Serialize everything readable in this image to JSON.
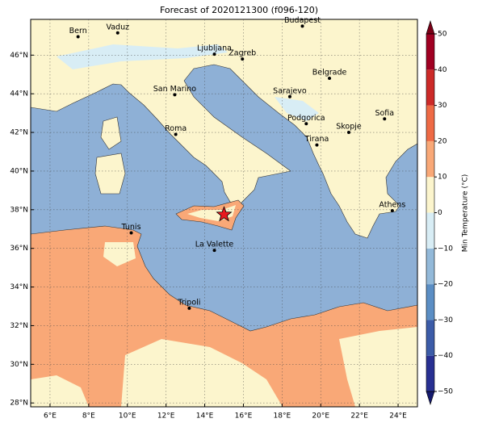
{
  "title": "Forecast of 2020121300 (f096-120)",
  "map": {
    "xlim": [
      5,
      25
    ],
    "ylim": [
      27.8,
      47.85
    ],
    "grid": true,
    "xticks": [
      {
        "value": 6,
        "label": "6°E"
      },
      {
        "value": 8,
        "label": "8°E"
      },
      {
        "value": 10,
        "label": "10°E"
      },
      {
        "value": 12,
        "label": "12°E"
      },
      {
        "value": 14,
        "label": "14°E"
      },
      {
        "value": 16,
        "label": "16°E"
      },
      {
        "value": 18,
        "label": "18°E"
      },
      {
        "value": 20,
        "label": "20°E"
      },
      {
        "value": 22,
        "label": "22°E"
      },
      {
        "value": 24,
        "label": "24°E"
      }
    ],
    "yticks": [
      {
        "value": 28,
        "label": "28°N"
      },
      {
        "value": 30,
        "label": "30°N"
      },
      {
        "value": 32,
        "label": "32°N"
      },
      {
        "value": 34,
        "label": "34°N"
      },
      {
        "value": 36,
        "label": "36°N"
      },
      {
        "value": 38,
        "label": "38°N"
      },
      {
        "value": 40,
        "label": "40°N"
      },
      {
        "value": 42,
        "label": "42°N"
      },
      {
        "value": 44,
        "label": "44°N"
      },
      {
        "value": 46,
        "label": "46°N"
      }
    ]
  },
  "cities": [
    {
      "name": "Bern",
      "lon": 7.45,
      "lat": 46.95
    },
    {
      "name": "Vaduz",
      "lon": 9.5,
      "lat": 47.15
    },
    {
      "name": "Budapest",
      "lon": 19.05,
      "lat": 47.5
    },
    {
      "name": "Ljubljana",
      "lon": 14.5,
      "lat": 46.05
    },
    {
      "name": "Zagreb",
      "lon": 15.95,
      "lat": 45.8
    },
    {
      "name": "Belgrade",
      "lon": 20.45,
      "lat": 44.8
    },
    {
      "name": "San Marino",
      "lon": 12.45,
      "lat": 43.95
    },
    {
      "name": "Sarajevo",
      "lon": 18.4,
      "lat": 43.85
    },
    {
      "name": "Sofia",
      "lon": 23.3,
      "lat": 42.7
    },
    {
      "name": "Podgorica",
      "lon": 19.25,
      "lat": 42.45
    },
    {
      "name": "Skopje",
      "lon": 21.45,
      "lat": 42.0
    },
    {
      "name": "Roma",
      "lon": 12.5,
      "lat": 41.9
    },
    {
      "name": "Tirana",
      "lon": 19.8,
      "lat": 41.35
    },
    {
      "name": "Athens",
      "lon": 23.7,
      "lat": 37.95
    },
    {
      "name": "Tunis",
      "lon": 10.2,
      "lat": 36.8
    },
    {
      "name": "La Valette",
      "lon": 14.5,
      "lat": 35.9
    },
    {
      "name": "Tripoli",
      "lon": 13.2,
      "lat": 32.9
    }
  ],
  "marker": {
    "lon": 15.0,
    "lat": 37.75,
    "color": "#e8191f"
  },
  "colorbar": {
    "label": "Min Temperature (°C)",
    "lim": [
      -50,
      50
    ],
    "ticks": [
      {
        "value": -50,
        "label": "−50"
      },
      {
        "value": -40,
        "label": "−40"
      },
      {
        "value": -30,
        "label": "−30"
      },
      {
        "value": -20,
        "label": "−20"
      },
      {
        "value": -10,
        "label": "−10"
      },
      0,
      10,
      20,
      30,
      40,
      50
    ],
    "colors": [
      "#283092",
      "#3c5ca8",
      "#5b8ec4",
      "#93b9d9",
      "#d8edf5",
      "#fcf5cd",
      "#f9a877",
      "#ee6a45",
      "#cc2a28",
      "#a00022"
    ],
    "under": "#151a6e",
    "over": "#7a0016"
  }
}
